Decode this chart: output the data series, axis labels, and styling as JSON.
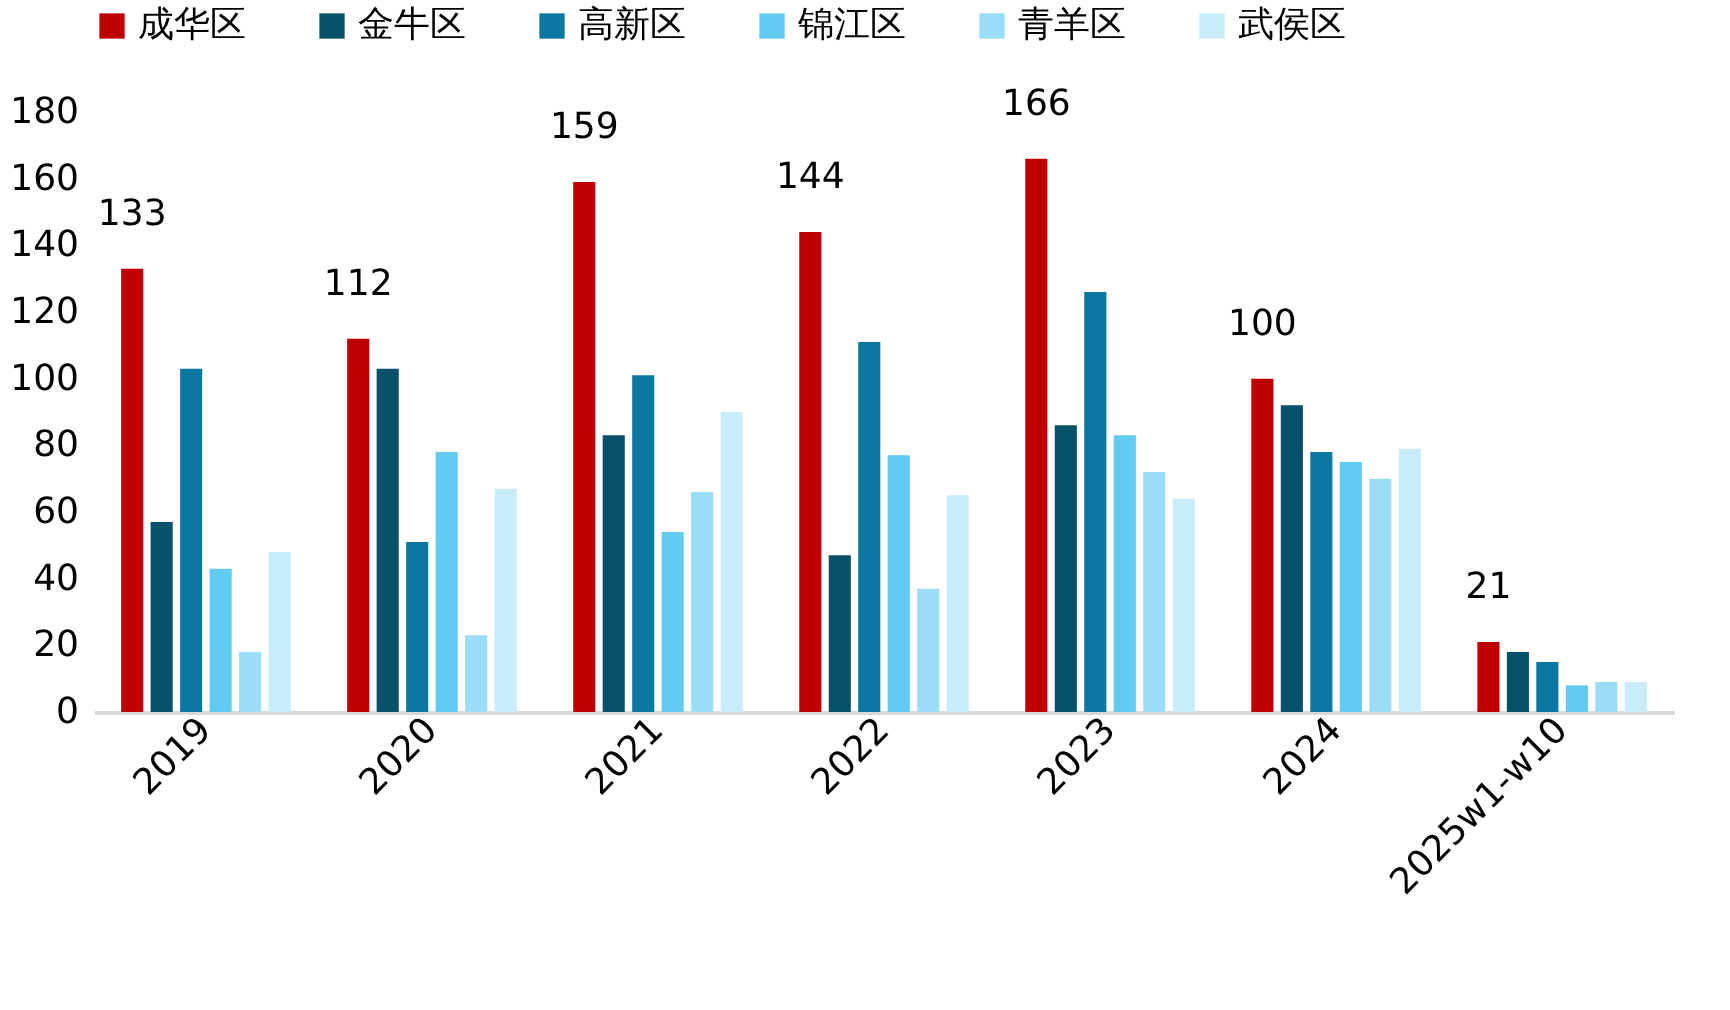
{
  "chart_data": {
    "type": "bar",
    "categories": [
      "2019",
      "2020",
      "2021",
      "2022",
      "2023",
      "2024",
      "2025w1-w10"
    ],
    "series": [
      {
        "name": "成华区",
        "color": "#c00000",
        "values": [
          133,
          112,
          159,
          144,
          166,
          100,
          21
        ],
        "value_labels": [
          "133",
          "112",
          "159",
          "144",
          "166",
          "100",
          "21"
        ]
      },
      {
        "name": "金牛区",
        "color": "#08516b",
        "values": [
          57,
          103,
          83,
          47,
          86,
          92,
          18
        ]
      },
      {
        "name": "高新区",
        "color": "#0c77a0",
        "values": [
          103,
          51,
          101,
          111,
          126,
          78,
          15
        ]
      },
      {
        "name": "锦江区",
        "color": "#62cbf2",
        "values": [
          43,
          78,
          54,
          77,
          83,
          75,
          8
        ]
      },
      {
        "name": "青羊区",
        "color": "#9bdcf7",
        "values": [
          18,
          23,
          66,
          37,
          72,
          70,
          9
        ]
      },
      {
        "name": "武侯区",
        "color": "#c9ecfb",
        "values": [
          48,
          67,
          90,
          65,
          64,
          79,
          9
        ]
      }
    ],
    "ylim": [
      0,
      180
    ],
    "yticks": [
      0,
      20,
      40,
      60,
      80,
      100,
      120,
      140,
      160,
      180
    ],
    "grid": false,
    "legend": "top"
  }
}
